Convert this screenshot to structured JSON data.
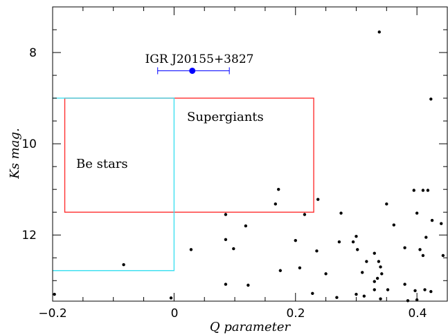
{
  "chart_data": {
    "type": "scatter",
    "xlabel": "Q parameter",
    "ylabel": "Ks mag.",
    "xlim": [
      -0.2,
      0.45
    ],
    "ylim": [
      13.45,
      7.0
    ],
    "y_inverted": true,
    "grid": false,
    "xticks": [
      "−0.2",
      "0",
      "0.2",
      "0.4"
    ],
    "yticks": [
      "8",
      "10",
      "12"
    ],
    "annotations": [
      {
        "text": "IGR J20155+3827",
        "x": 0.03,
        "y": 8.1
      },
      {
        "text": "Supergiants",
        "x": 0.09,
        "y": 9.4
      },
      {
        "text": "Be stars",
        "x": -0.155,
        "y": 10.45
      }
    ],
    "target": {
      "name": "IGR J20155+3827",
      "x": 0.03,
      "y": 8.4,
      "x_err_low": -0.027,
      "x_err_high": 0.091,
      "color": "#0000ff"
    },
    "regions": [
      {
        "name": "Supergiants",
        "color": "#ff3030",
        "x_range": [
          -0.18,
          0.23
        ],
        "y_range": [
          9.0,
          11.5
        ]
      },
      {
        "name": "Be stars",
        "color": "#40e0f0",
        "x_min": 0.0,
        "y_top": 9.0,
        "y_bottom": 12.78
      }
    ],
    "series": [
      {
        "points": [
          [
            0.338,
            7.55
          ],
          [
            0.423,
            9.02
          ],
          [
            0.172,
            11.0
          ],
          [
            0.167,
            11.32
          ],
          [
            0.237,
            11.22
          ],
          [
            0.085,
            11.55
          ],
          [
            0.215,
            11.55
          ],
          [
            0.118,
            11.8
          ],
          [
            0.085,
            12.1
          ],
          [
            0.098,
            12.3
          ],
          [
            0.028,
            12.32
          ],
          [
            0.2,
            12.12
          ],
          [
            0.235,
            12.35
          ],
          [
            0.275,
            11.52
          ],
          [
            0.272,
            12.15
          ],
          [
            0.295,
            12.15
          ],
          [
            0.3,
            12.03
          ],
          [
            0.302,
            12.32
          ],
          [
            0.317,
            12.58
          ],
          [
            0.33,
            12.4
          ],
          [
            0.337,
            12.58
          ],
          [
            0.34,
            12.7
          ],
          [
            0.342,
            12.85
          ],
          [
            0.335,
            12.95
          ],
          [
            0.35,
            11.32
          ],
          [
            0.362,
            11.78
          ],
          [
            0.38,
            12.28
          ],
          [
            0.395,
            11.02
          ],
          [
            0.4,
            11.52
          ],
          [
            0.41,
            11.02
          ],
          [
            0.418,
            11.02
          ],
          [
            0.425,
            11.68
          ],
          [
            0.44,
            11.75
          ],
          [
            0.405,
            12.32
          ],
          [
            0.41,
            12.45
          ],
          [
            0.415,
            12.05
          ],
          [
            0.443,
            12.45
          ],
          [
            0.175,
            12.78
          ],
          [
            0.207,
            12.72
          ],
          [
            0.085,
            13.08
          ],
          [
            0.122,
            13.1
          ],
          [
            0.25,
            12.85
          ],
          [
            0.31,
            12.82
          ],
          [
            0.33,
            13.02
          ],
          [
            0.33,
            13.2
          ],
          [
            0.352,
            13.2
          ],
          [
            0.38,
            13.08
          ],
          [
            0.397,
            13.22
          ],
          [
            0.413,
            13.2
          ],
          [
            0.423,
            13.24
          ],
          [
            0.228,
            13.28
          ],
          [
            0.3,
            13.3
          ],
          [
            0.313,
            13.34
          ],
          [
            0.268,
            13.37
          ],
          [
            0.34,
            13.4
          ],
          [
            0.385,
            13.44
          ],
          [
            0.4,
            13.42
          ],
          [
            -0.083,
            12.65
          ],
          [
            -0.197,
            13.3
          ],
          [
            -0.005,
            13.38
          ]
        ]
      }
    ]
  }
}
